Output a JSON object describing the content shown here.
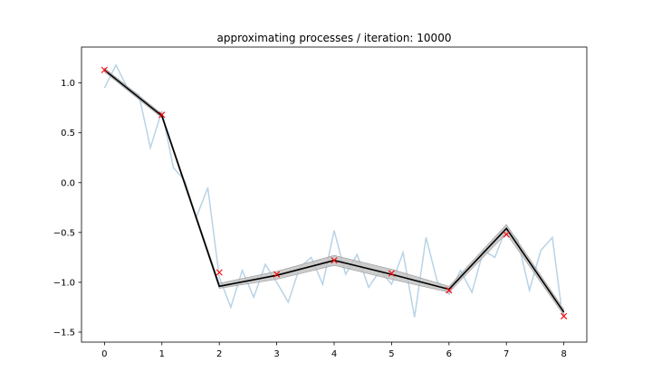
{
  "title": "approximating processes / iteration: 10000",
  "chart_data": {
    "type": "line",
    "title": "approximating processes / iteration: 10000",
    "xlabel": "",
    "ylabel": "",
    "xlim": [
      -0.4,
      8.4
    ],
    "ylim": [
      -1.6,
      1.36
    ],
    "x_ticks": [
      0,
      1,
      2,
      3,
      4,
      5,
      6,
      7,
      8
    ],
    "x_tick_labels": [
      "0",
      "1",
      "2",
      "3",
      "4",
      "5",
      "6",
      "7",
      "8"
    ],
    "y_ticks": [
      -1.5,
      -1.0,
      -0.5,
      0.0,
      0.5,
      1.0
    ],
    "y_tick_labels": [
      "−1.5",
      "−1.0",
      "−0.5",
      "0.0",
      "0.5",
      "1.0"
    ],
    "grid": false,
    "colors": {
      "observations": "#ff0000",
      "mean_path": "#000000",
      "band": "#bfbfbf",
      "noisy_path": "#a6c8e0"
    },
    "series": [
      {
        "role": "observations",
        "marker": "x",
        "x": [
          0,
          1,
          2,
          3,
          4,
          5,
          6,
          7,
          8
        ],
        "y": [
          1.13,
          0.68,
          -0.9,
          -0.92,
          -0.78,
          -0.91,
          -1.08,
          -0.52,
          -1.34
        ]
      },
      {
        "role": "mean-path",
        "x": [
          0,
          1,
          2,
          3,
          4,
          5,
          6,
          7,
          8
        ],
        "y": [
          1.13,
          0.67,
          -1.04,
          -0.93,
          -0.78,
          -0.92,
          -1.07,
          -0.46,
          -1.3
        ]
      },
      {
        "role": "uncertainty-band",
        "x": [
          0,
          1,
          2,
          3,
          4,
          5,
          6,
          7,
          8
        ],
        "y_low": [
          1.11,
          0.65,
          -1.06,
          -0.97,
          -0.83,
          -0.97,
          -1.1,
          -0.51,
          -1.33
        ],
        "y_high": [
          1.15,
          0.69,
          -1.01,
          -0.89,
          -0.73,
          -0.87,
          -1.04,
          -0.42,
          -1.27
        ]
      },
      {
        "role": "sample-process",
        "x": [
          0,
          0.2,
          0.4,
          0.6,
          0.8,
          1.0,
          1.2,
          1.4,
          1.6,
          1.8,
          2.0,
          2.2,
          2.4,
          2.6,
          2.8,
          3.0,
          3.2,
          3.4,
          3.6,
          3.8,
          4.0,
          4.2,
          4.4,
          4.6,
          4.8,
          5.0,
          5.2,
          5.4,
          5.6,
          5.8,
          6.0,
          6.2,
          6.4,
          6.6,
          6.8,
          7.0,
          7.2,
          7.4,
          7.6,
          7.8,
          7.95
        ],
        "y": [
          0.95,
          1.18,
          0.95,
          0.88,
          0.35,
          0.72,
          0.15,
          0.02,
          -0.35,
          -0.05,
          -0.95,
          -1.25,
          -0.88,
          -1.15,
          -0.82,
          -1.0,
          -1.2,
          -0.85,
          -0.75,
          -1.02,
          -0.48,
          -0.92,
          -0.72,
          -1.05,
          -0.88,
          -1.02,
          -0.7,
          -1.35,
          -0.55,
          -1.0,
          -1.12,
          -0.88,
          -1.1,
          -0.68,
          -0.75,
          -0.45,
          -0.58,
          -1.08,
          -0.68,
          -0.55,
          -1.22
        ]
      }
    ]
  }
}
